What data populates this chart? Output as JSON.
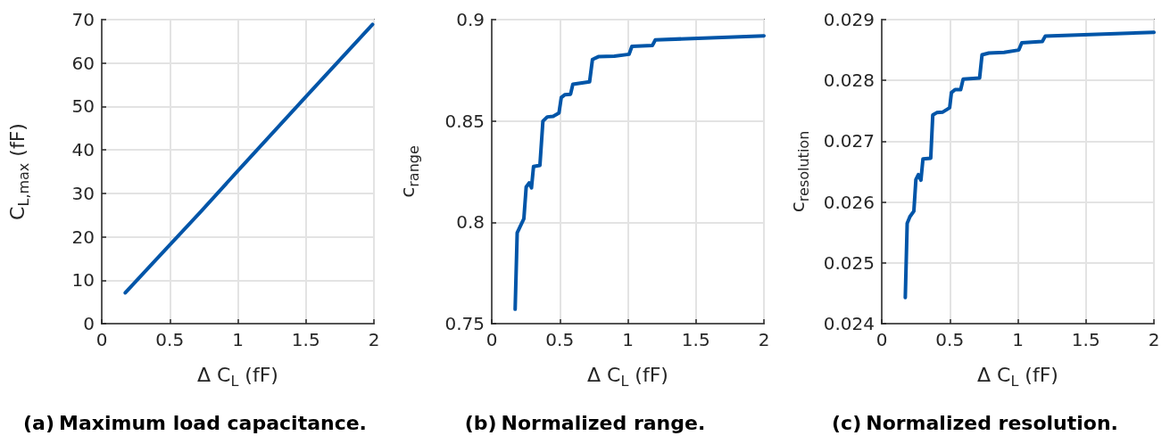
{
  "chart_data": [
    {
      "type": "line",
      "title": "(a) Maximum load capacitance.",
      "xlabel": "Δ C$_{L}$ (fF)",
      "ylabel": "C$_{L,max}$ (fF)",
      "xlim": [
        0,
        2
      ],
      "xticks": [
        0,
        0.5,
        1,
        1.5,
        2
      ],
      "ylim": [
        0,
        70
      ],
      "yticks": [
        0,
        10,
        20,
        30,
        40,
        50,
        60,
        70
      ],
      "grid": true,
      "series": [
        {
          "color": "#0055a8",
          "x": [
            0.173,
            0.363,
            0.731,
            1.006,
            1.496,
            1.99
          ],
          "values": [
            7.1,
            13.5,
            25.9,
            35.4,
            52.1,
            68.9
          ]
        }
      ]
    },
    {
      "type": "line",
      "title": "(b) Normalized range.",
      "xlabel": "Δ C$_{L}$ (fF)",
      "ylabel": "c$_{range}$",
      "xlim": [
        0,
        2
      ],
      "xticks": [
        0,
        0.5,
        1,
        1.5,
        2
      ],
      "ylim": [
        0.75,
        0.9
      ],
      "yticks": [
        0.75,
        0.8,
        0.85,
        0.9
      ],
      "grid": true,
      "series": [
        {
          "color": "#0055a8",
          "x": [
            0.172,
            0.187,
            0.21,
            0.236,
            0.253,
            0.275,
            0.292,
            0.307,
            0.354,
            0.376,
            0.408,
            0.451,
            0.494,
            0.511,
            0.536,
            0.579,
            0.596,
            0.719,
            0.74,
            0.783,
            0.901,
            1.009,
            1.03,
            1.18,
            1.202,
            2.0
          ],
          "values": [
            0.7571,
            0.7948,
            0.7981,
            0.8017,
            0.8174,
            0.8194,
            0.817,
            0.8275,
            0.8281,
            0.8499,
            0.852,
            0.8523,
            0.8539,
            0.8616,
            0.8629,
            0.8632,
            0.8681,
            0.8693,
            0.8803,
            0.8817,
            0.882,
            0.8829,
            0.8868,
            0.8872,
            0.89,
            0.892
          ]
        }
      ]
    },
    {
      "type": "line",
      "title": "(c) Normalized resolution.",
      "xlabel": "Δ C$_{L}$ (fF)",
      "ylabel": "c$_{resolution}$",
      "xlim": [
        0,
        2
      ],
      "xticks": [
        0,
        0.5,
        1,
        1.5,
        2
      ],
      "ylim": [
        0.024,
        0.029
      ],
      "yticks": [
        0.024,
        0.025,
        0.026,
        0.027,
        0.028,
        0.029
      ],
      "grid": true,
      "series": [
        {
          "color": "#0055a8",
          "x": [
            0.173,
            0.187,
            0.207,
            0.236,
            0.251,
            0.269,
            0.288,
            0.303,
            0.36,
            0.375,
            0.404,
            0.449,
            0.499,
            0.512,
            0.539,
            0.58,
            0.598,
            0.719,
            0.737,
            0.787,
            0.899,
            1.007,
            1.029,
            1.18,
            1.202,
            2.0
          ],
          "values": [
            0.02443,
            0.02565,
            0.02576,
            0.02585,
            0.02637,
            0.02645,
            0.02636,
            0.02671,
            0.02672,
            0.02743,
            0.02747,
            0.02748,
            0.02755,
            0.0278,
            0.02785,
            0.02785,
            0.02802,
            0.02804,
            0.02842,
            0.02845,
            0.02846,
            0.0285,
            0.02862,
            0.02864,
            0.02873,
            0.02879
          ]
        }
      ]
    }
  ]
}
